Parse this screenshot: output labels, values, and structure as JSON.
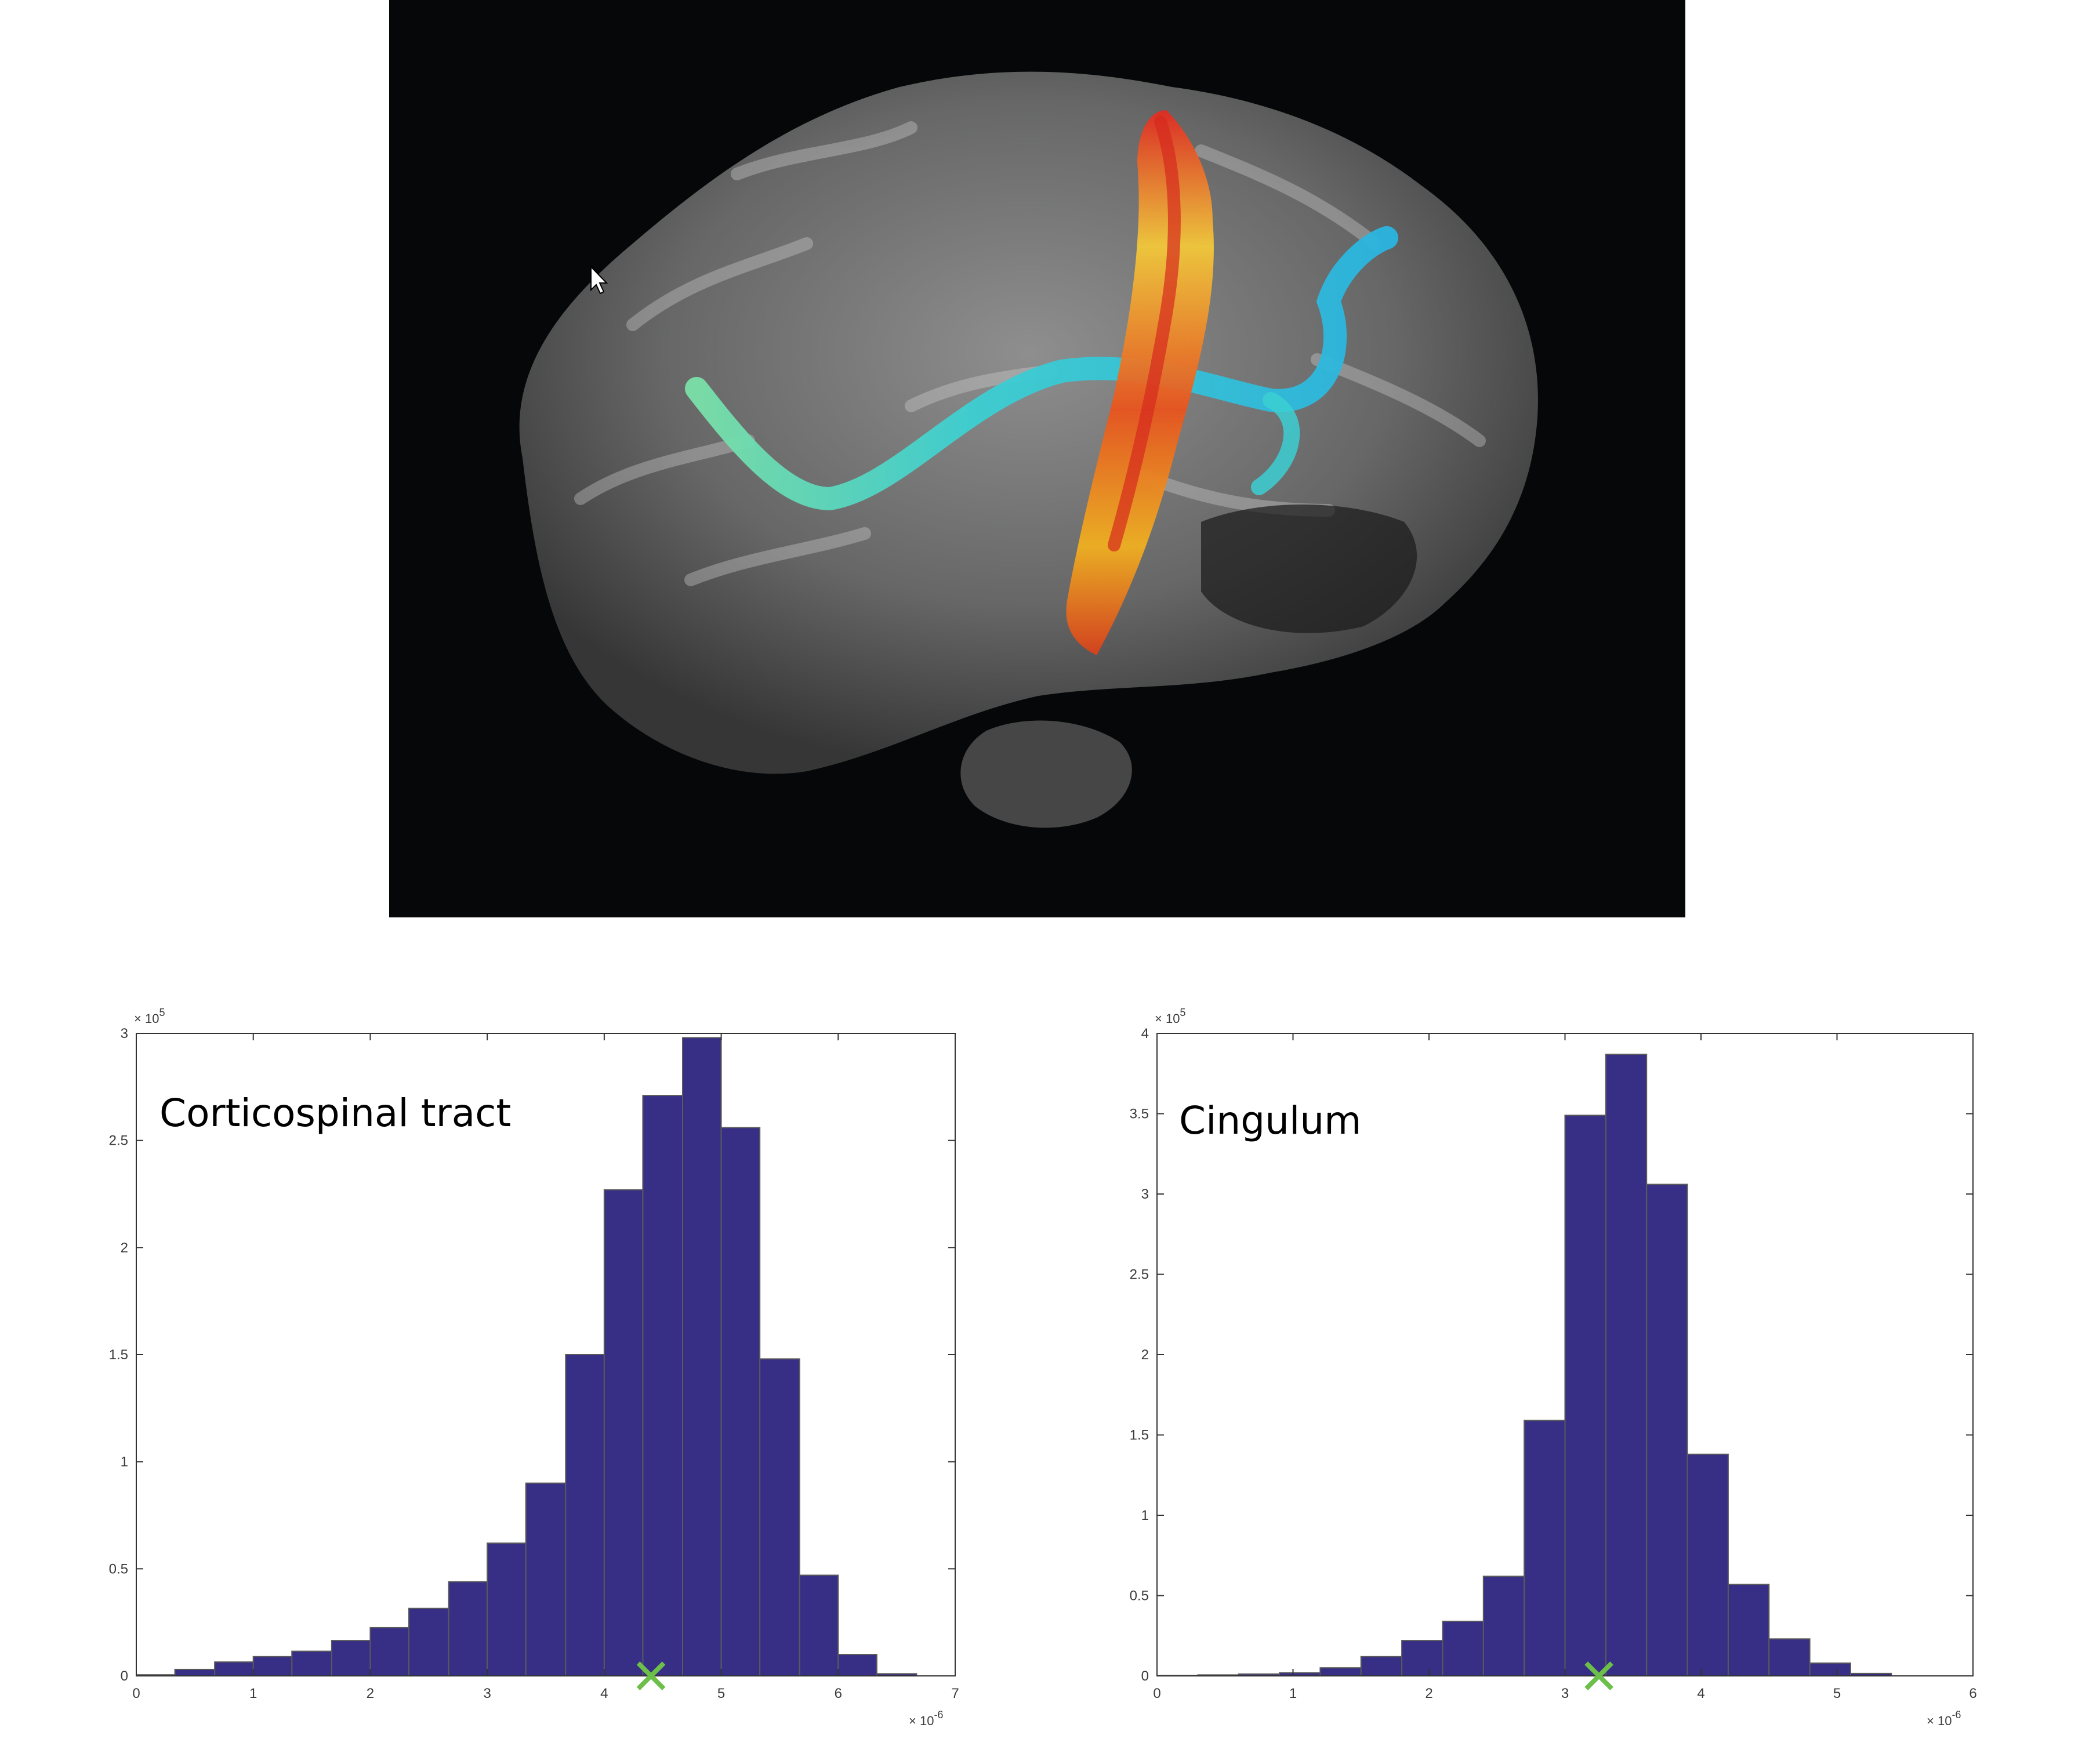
{
  "brain_image": {
    "description_icon": "brain-tractography-icon",
    "colors": {
      "background": "#050708",
      "cortex": "#8a8a8a",
      "corticospinal": "#f0b020",
      "corticospinal_core": "#e0302a",
      "cingulum": "#38d6c8"
    }
  },
  "chart_data": [
    {
      "type": "bar",
      "title": "Corticospinal tract",
      "x_multiplier": "× 10",
      "x_multiplier_exp": "-6",
      "y_multiplier": "× 10",
      "y_multiplier_exp": "5",
      "xlim": [
        0,
        7
      ],
      "ylim": [
        0,
        3
      ],
      "x_ticks": [
        "0",
        "1",
        "2",
        "3",
        "4",
        "5",
        "6",
        "7"
      ],
      "x_tick_values": [
        0,
        1,
        2,
        3,
        4,
        5,
        6,
        7
      ],
      "y_ticks": [
        "0",
        "0.5",
        "1",
        "1.5",
        "2",
        "2.5",
        "3"
      ],
      "y_tick_values": [
        0,
        0.5,
        1,
        1.5,
        2,
        2.5,
        3
      ],
      "bin_edges": [
        0.0,
        0.33,
        0.67,
        1.0,
        1.33,
        1.67,
        2.0,
        2.33,
        2.67,
        3.0,
        3.33,
        3.67,
        4.0,
        4.33,
        4.67,
        5.0,
        5.33,
        5.67,
        6.0,
        6.33,
        6.67
      ],
      "values": [
        0.005,
        0.03,
        0.065,
        0.09,
        0.115,
        0.165,
        0.225,
        0.315,
        0.44,
        0.62,
        0.9,
        1.5,
        2.27,
        2.71,
        2.98,
        2.56,
        1.48,
        0.47,
        0.1,
        0.01
      ],
      "marker": {
        "x": 4.4,
        "y": 0,
        "symbol": "x",
        "color": "#6cc04a"
      },
      "bar_color": "#372f85"
    },
    {
      "type": "bar",
      "title": "Cingulum",
      "x_multiplier": "× 10",
      "x_multiplier_exp": "-6",
      "y_multiplier": "× 10",
      "y_multiplier_exp": "5",
      "xlim": [
        0,
        6
      ],
      "ylim": [
        0,
        4
      ],
      "x_ticks": [
        "0",
        "1",
        "2",
        "3",
        "4",
        "5",
        "6"
      ],
      "x_tick_values": [
        0,
        1,
        2,
        3,
        4,
        5,
        6
      ],
      "y_ticks": [
        "0",
        "0.5",
        "1",
        "1.5",
        "2",
        "2.5",
        "3",
        "3.5",
        "4"
      ],
      "y_tick_values": [
        0,
        0.5,
        1,
        1.5,
        2,
        2.5,
        3,
        3.5,
        4
      ],
      "bin_edges": [
        0.0,
        0.3,
        0.6,
        0.9,
        1.2,
        1.5,
        1.8,
        2.1,
        2.4,
        2.7,
        3.0,
        3.3,
        3.6,
        3.9,
        4.2,
        4.5,
        4.8,
        5.1,
        5.4
      ],
      "values": [
        0.003,
        0.006,
        0.012,
        0.02,
        0.05,
        0.12,
        0.22,
        0.34,
        0.62,
        1.59,
        3.49,
        3.87,
        3.06,
        1.38,
        0.57,
        0.23,
        0.08,
        0.015
      ],
      "marker": {
        "x": 3.25,
        "y": 0,
        "symbol": "x",
        "color": "#6cc04a"
      },
      "bar_color": "#372f85"
    }
  ]
}
